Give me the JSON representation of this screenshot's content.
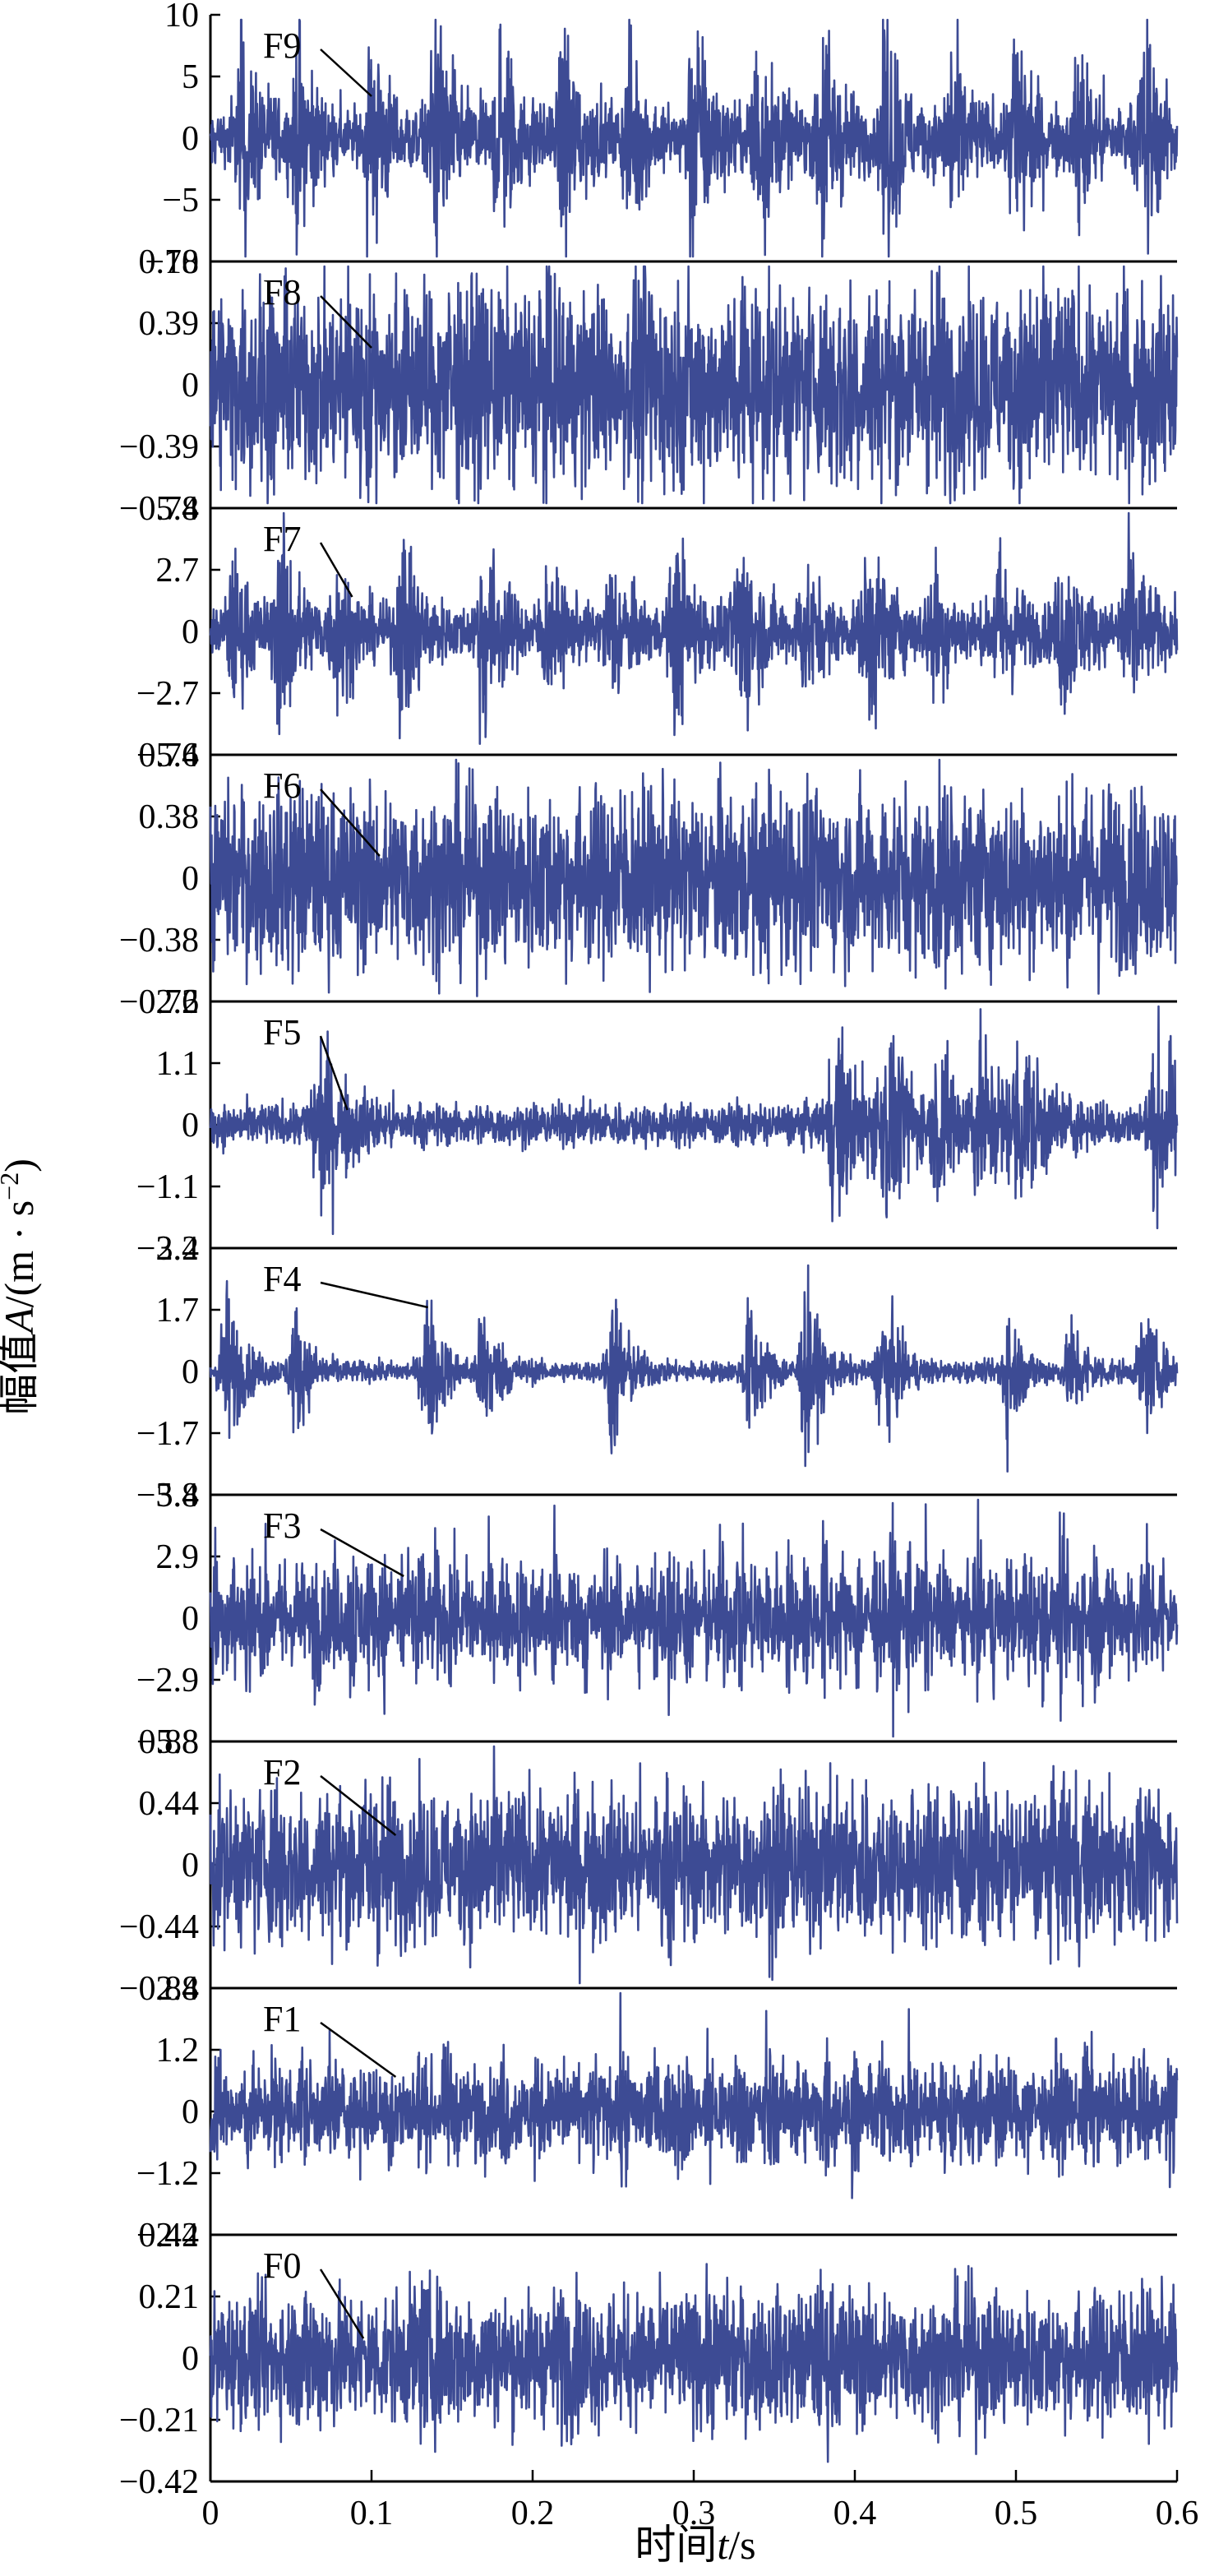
{
  "chart_data": {
    "type": "line",
    "ylabel": "幅值A/(m·s⁻²)",
    "ylabel_parts": {
      "cn": "幅值",
      "sym": "A",
      "unit": "/(m · s",
      "exp": "−2",
      "close": ")"
    },
    "xlabel": "时间t/s",
    "xlabel_parts": {
      "cn": "时间",
      "sym": "t",
      "unit": "/s"
    },
    "xlim": [
      0,
      0.6
    ],
    "x_ticks": [
      "0",
      "0.1",
      "0.2",
      "0.3",
      "0.4",
      "0.5",
      "0.6"
    ],
    "x_tick_values": [
      0,
      0.1,
      0.2,
      0.3,
      0.4,
      0.5,
      0.6
    ],
    "line_color": "#3d4b94",
    "panels": [
      {
        "name": "F9",
        "ylim": [
          -10,
          10
        ],
        "ticks": [
          "10",
          "5",
          "0",
          "−5",
          "−10"
        ],
        "tick_values": [
          10,
          5,
          0,
          -5,
          -10
        ],
        "label_target_x": 0.1,
        "label_target_frac": 0.33,
        "noise": 0.1,
        "burst_times": [
          0.02,
          0.055,
          0.1,
          0.14,
          0.18,
          0.22,
          0.26,
          0.3,
          0.34,
          0.38,
          0.42,
          0.46,
          0.5,
          0.54,
          0.58
        ],
        "burst_amp": 0.4,
        "burst_width": 0.004,
        "carrier": 2.0
      },
      {
        "name": "F8",
        "ylim": [
          -0.78,
          0.78
        ],
        "ticks": [
          "0.78",
          "0.39",
          "0",
          "−0.39",
          "−0.78"
        ],
        "tick_values": [
          0.78,
          0.39,
          0,
          -0.39,
          -0.78
        ],
        "label_target_x": 0.1,
        "label_target_frac": 0.35,
        "noise": 0.26,
        "burst_times": [
          0.03,
          0.09,
          0.15,
          0.21,
          0.27,
          0.33,
          0.39,
          0.45,
          0.51,
          0.57
        ],
        "burst_amp": 0.1,
        "burst_width": 0.004,
        "carrier": 2.5
      },
      {
        "name": "F7",
        "ylim": [
          -5.4,
          5.4
        ],
        "ticks": [
          "5.4",
          "2.7",
          "0",
          "−2.7",
          "−5.4"
        ],
        "tick_values": [
          5.4,
          2.7,
          0,
          -2.7,
          -5.4
        ],
        "label_target_x": 0.088,
        "label_target_frac": 0.36,
        "noise": 0.07,
        "burst_times": [
          0.015,
          0.045,
          0.08,
          0.12,
          0.17,
          0.21,
          0.25,
          0.29,
          0.33,
          0.37,
          0.41,
          0.45,
          0.49,
          0.53,
          0.57
        ],
        "burst_amp": 0.26,
        "burst_width": 0.005,
        "carrier": 2.2
      },
      {
        "name": "F6",
        "ylim": [
          -0.76,
          0.76
        ],
        "ticks": [
          "0.76",
          "0.38",
          "0",
          "−0.38",
          "−0.76"
        ],
        "tick_values": [
          0.76,
          0.38,
          0,
          -0.38,
          -0.76
        ],
        "label_target_x": 0.105,
        "label_target_frac": 0.41,
        "noise": 0.24,
        "burst_times": [
          0.05,
          0.15,
          0.25,
          0.35,
          0.45,
          0.55
        ],
        "burst_amp": 0.06,
        "burst_width": 0.004,
        "carrier": 2.5
      },
      {
        "name": "F5",
        "ylim": [
          -2.2,
          2.2
        ],
        "ticks": [
          "2.2",
          "1.1",
          "0",
          "−1.1",
          "−2.2"
        ],
        "tick_values": [
          2.2,
          1.1,
          0,
          -1.1,
          -2.2
        ],
        "label_target_x": 0.085,
        "label_target_frac": 0.44,
        "noise": 0.07,
        "burst_times": [
          0.07,
          0.39,
          0.42,
          0.455,
          0.48,
          0.505,
          0.59
        ],
        "burst_amp": 0.24,
        "burst_width": 0.007,
        "carrier": 2.0
      },
      {
        "name": "F4",
        "ylim": [
          -3.4,
          3.4
        ],
        "ticks": [
          "3.4",
          "1.7",
          "0",
          "−1.7",
          "−3.4"
        ],
        "tick_values": [
          3.4,
          1.7,
          0,
          -1.7,
          -3.4
        ],
        "label_target_x": 0.135,
        "label_target_frac": 0.24,
        "noise": 0.035,
        "burst_times": [
          0.01,
          0.053,
          0.135,
          0.17,
          0.25,
          0.335,
          0.37,
          0.418,
          0.495,
          0.535,
          0.58
        ],
        "burst_amp": 0.26,
        "burst_width": 0.004,
        "carrier": 2.0
      },
      {
        "name": "F3",
        "ylim": [
          -5.8,
          5.8
        ],
        "ticks": [
          "5.8",
          "2.9",
          "0",
          "−2.9",
          "−5.8"
        ],
        "tick_values": [
          5.8,
          2.9,
          0,
          -2.9,
          -5.8
        ],
        "label_target_x": 0.12,
        "label_target_frac": 0.33,
        "noise": 0.08,
        "burst_period": 0.0105,
        "burst_amp": 0.24,
        "burst_width": 0.0022,
        "carrier": 2.0
      },
      {
        "name": "F2",
        "ylim": [
          -0.88,
          0.88
        ],
        "ticks": [
          "0.88",
          "0.44",
          "0",
          "−0.44",
          "−0.88"
        ],
        "tick_values": [
          0.88,
          0.44,
          0,
          -0.44,
          -0.88
        ],
        "label_target_x": 0.115,
        "label_target_frac": 0.38,
        "noise": 0.2,
        "burst_times": [
          0.04,
          0.1,
          0.17,
          0.23,
          0.28,
          0.35,
          0.4,
          0.46,
          0.53
        ],
        "burst_amp": 0.07,
        "burst_width": 0.004,
        "carrier": 2.5
      },
      {
        "name": "F1",
        "ylim": [
          -2.4,
          2.4
        ],
        "ticks": [
          "2.4",
          "1.2",
          "0",
          "−1.2",
          "−2.4"
        ],
        "tick_values": [
          2.4,
          1.2,
          0,
          -1.2,
          -2.4
        ],
        "label_target_x": 0.115,
        "label_target_frac": 0.36,
        "noise": 0.1,
        "burst_period": 0.018,
        "burst_amp": 0.13,
        "burst_width": 0.002,
        "carrier": 2.5
      },
      {
        "name": "F0",
        "ylim": [
          -0.42,
          0.42
        ],
        "ticks": [
          "0.42",
          "0.21",
          "0",
          "−0.21",
          "−0.42"
        ],
        "tick_values": [
          0.42,
          0.21,
          0,
          -0.21,
          -0.42
        ],
        "label_target_x": 0.095,
        "label_target_frac": 0.42,
        "noise": 0.22,
        "burst_times": [
          0.06,
          0.13,
          0.22,
          0.31,
          0.38,
          0.47,
          0.56
        ],
        "burst_amp": 0.07,
        "burst_width": 0.006,
        "carrier": 2.0
      }
    ]
  }
}
